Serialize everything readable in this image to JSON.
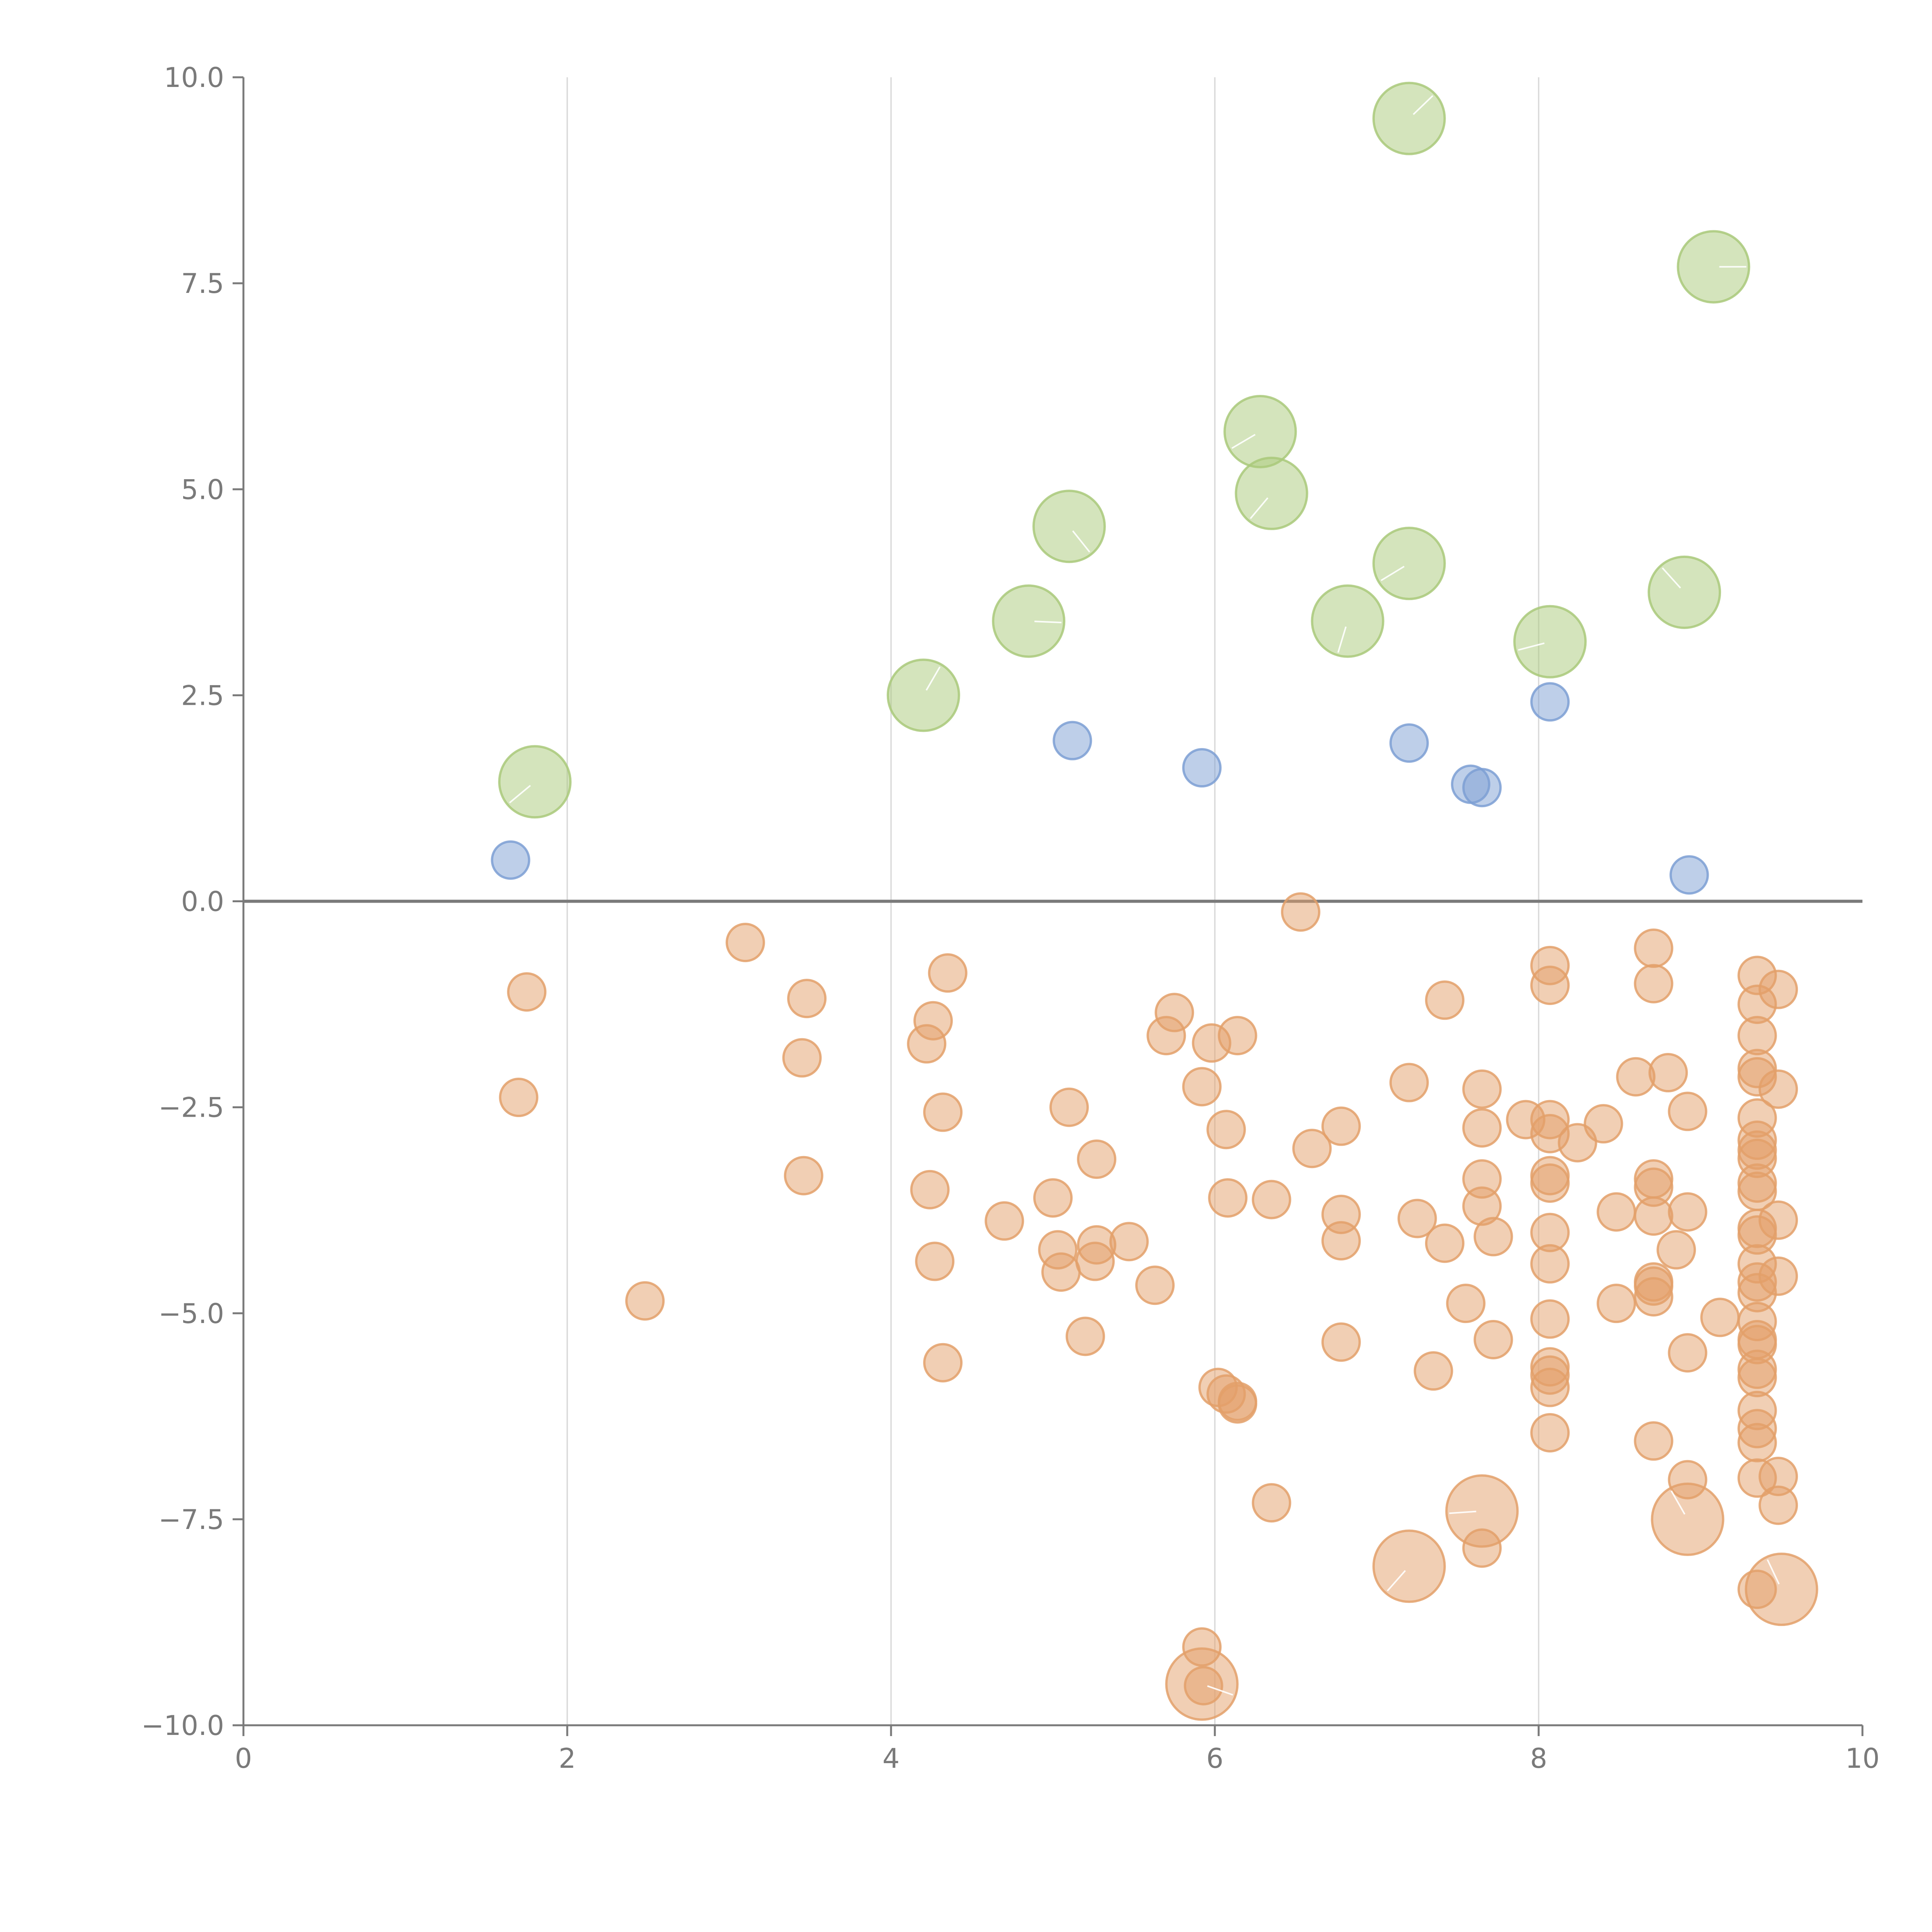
{
  "chart_data": {
    "type": "scatter",
    "title": "",
    "xlabel": "",
    "ylabel": "",
    "xlim": [
      0,
      10
    ],
    "ylim": [
      -10,
      10
    ],
    "xticks": [
      "0",
      "2",
      "4",
      "6",
      "8",
      "10"
    ],
    "yticks": [
      "10.0",
      "7.5",
      "5.0",
      "2.5",
      "0.0",
      "−2.5",
      "−5.0",
      "−7.5",
      "−10.0"
    ],
    "grid": "vertical",
    "legend": "none",
    "colors": {
      "green": "#a9c97a",
      "blue": "#7d9fd3",
      "orange": "#e3a06a",
      "axis": "#7a7a7a",
      "grid": "#d9d9d9"
    },
    "series": [
      {
        "name": "green",
        "color": "#a9c97a",
        "size": "large",
        "points": [
          {
            "x": 1.8,
            "y": 1.45
          },
          {
            "x": 4.2,
            "y": 2.5
          },
          {
            "x": 4.85,
            "y": 3.4
          },
          {
            "x": 5.1,
            "y": 4.55
          },
          {
            "x": 6.28,
            "y": 5.7
          },
          {
            "x": 6.35,
            "y": 4.95
          },
          {
            "x": 6.82,
            "y": 3.4
          },
          {
            "x": 7.2,
            "y": 4.1
          },
          {
            "x": 7.2,
            "y": 9.5
          },
          {
            "x": 8.07,
            "y": 3.15
          },
          {
            "x": 8.9,
            "y": 3.75
          },
          {
            "x": 9.08,
            "y": 7.7
          }
        ]
      },
      {
        "name": "blue",
        "color": "#7d9fd3",
        "size": "small",
        "points": [
          {
            "x": 1.65,
            "y": 0.5
          },
          {
            "x": 5.12,
            "y": 1.95
          },
          {
            "x": 5.92,
            "y": 1.62
          },
          {
            "x": 7.2,
            "y": 1.92
          },
          {
            "x": 7.58,
            "y": 1.42
          },
          {
            "x": 7.65,
            "y": 1.38
          },
          {
            "x": 8.07,
            "y": 2.42
          },
          {
            "x": 8.93,
            "y": 0.32
          }
        ]
      },
      {
        "name": "orange",
        "color": "#e3a06a",
        "size": "small",
        "points": [
          {
            "x": 1.75,
            "y": -1.1
          },
          {
            "x": 1.7,
            "y": -2.38
          },
          {
            "x": 2.48,
            "y": -4.85
          },
          {
            "x": 3.1,
            "y": -0.5
          },
          {
            "x": 3.48,
            "y": -1.18
          },
          {
            "x": 3.45,
            "y": -1.9
          },
          {
            "x": 3.46,
            "y": -3.33
          },
          {
            "x": 4.35,
            "y": -0.87
          },
          {
            "x": 4.26,
            "y": -1.45
          },
          {
            "x": 4.22,
            "y": -1.73
          },
          {
            "x": 4.32,
            "y": -2.56
          },
          {
            "x": 4.24,
            "y": -3.5
          },
          {
            "x": 4.27,
            "y": -4.37
          },
          {
            "x": 4.32,
            "y": -5.6
          },
          {
            "x": 4.7,
            "y": -3.88
          },
          {
            "x": 5.0,
            "y": -3.6
          },
          {
            "x": 5.03,
            "y": -4.23
          },
          {
            "x": 5.05,
            "y": -4.5
          },
          {
            "x": 5.1,
            "y": -2.5
          },
          {
            "x": 5.2,
            "y": -5.28
          },
          {
            "x": 5.27,
            "y": -3.13
          },
          {
            "x": 5.27,
            "y": -4.17
          },
          {
            "x": 5.26,
            "y": -4.37
          },
          {
            "x": 5.47,
            "y": -4.13
          },
          {
            "x": 5.63,
            "y": -4.66
          },
          {
            "x": 5.7,
            "y": -1.63
          },
          {
            "x": 5.75,
            "y": -1.35
          },
          {
            "x": 5.92,
            "y": -2.25
          },
          {
            "x": 5.98,
            "y": -1.72
          },
          {
            "x": 6.07,
            "y": -2.77
          },
          {
            "x": 6.08,
            "y": -3.6
          },
          {
            "x": 6.14,
            "y": -1.63
          },
          {
            "x": 6.35,
            "y": -3.62
          },
          {
            "x": 6.02,
            "y": -5.9
          },
          {
            "x": 6.07,
            "y": -5.98
          },
          {
            "x": 6.14,
            "y": -6.1
          },
          {
            "x": 6.14,
            "y": -6.07
          },
          {
            "x": 6.35,
            "y": -7.3
          },
          {
            "x": 5.92,
            "y": -9.05
          },
          {
            "x": 5.93,
            "y": -9.52
          },
          {
            "x": 6.53,
            "y": -0.13
          },
          {
            "x": 6.6,
            "y": -3.0
          },
          {
            "x": 6.78,
            "y": -2.73
          },
          {
            "x": 6.78,
            "y": -3.8
          },
          {
            "x": 6.78,
            "y": -4.12
          },
          {
            "x": 6.78,
            "y": -5.35
          },
          {
            "x": 7.2,
            "y": -2.2
          },
          {
            "x": 7.25,
            "y": -3.85
          },
          {
            "x": 7.35,
            "y": -5.7
          },
          {
            "x": 7.42,
            "y": -1.2
          },
          {
            "x": 7.42,
            "y": -4.15
          },
          {
            "x": 7.55,
            "y": -4.88
          },
          {
            "x": 7.65,
            "y": -2.28
          },
          {
            "x": 7.65,
            "y": -2.75
          },
          {
            "x": 7.65,
            "y": -3.37
          },
          {
            "x": 7.65,
            "y": -3.7
          },
          {
            "x": 7.72,
            "y": -4.07
          },
          {
            "x": 7.72,
            "y": -5.32
          },
          {
            "x": 7.65,
            "y": -7.85
          },
          {
            "x": 7.92,
            "y": -2.65
          },
          {
            "x": 8.07,
            "y": -0.78
          },
          {
            "x": 8.07,
            "y": -1.02
          },
          {
            "x": 8.07,
            "y": -2.65
          },
          {
            "x": 8.07,
            "y": -2.82
          },
          {
            "x": 8.07,
            "y": -3.33
          },
          {
            "x": 8.07,
            "y": -3.42
          },
          {
            "x": 8.07,
            "y": -4.02
          },
          {
            "x": 8.07,
            "y": -4.4
          },
          {
            "x": 8.07,
            "y": -5.07
          },
          {
            "x": 8.07,
            "y": -5.65
          },
          {
            "x": 8.07,
            "y": -5.75
          },
          {
            "x": 8.07,
            "y": -5.9
          },
          {
            "x": 8.07,
            "y": -6.45
          },
          {
            "x": 8.24,
            "y": -2.93
          },
          {
            "x": 8.4,
            "y": -2.7
          },
          {
            "x": 8.48,
            "y": -3.77
          },
          {
            "x": 8.48,
            "y": -4.88
          },
          {
            "x": 8.6,
            "y": -2.13
          },
          {
            "x": 8.71,
            "y": -0.57
          },
          {
            "x": 8.71,
            "y": -1.0
          },
          {
            "x": 8.71,
            "y": -3.37
          },
          {
            "x": 8.71,
            "y": -3.47
          },
          {
            "x": 8.71,
            "y": -3.82
          },
          {
            "x": 8.71,
            "y": -4.62
          },
          {
            "x": 8.71,
            "y": -4.67
          },
          {
            "x": 8.71,
            "y": -4.8
          },
          {
            "x": 8.71,
            "y": -6.55
          },
          {
            "x": 8.8,
            "y": -2.08
          },
          {
            "x": 8.85,
            "y": -4.23
          },
          {
            "x": 8.92,
            "y": -2.55
          },
          {
            "x": 8.92,
            "y": -3.77
          },
          {
            "x": 8.92,
            "y": -5.48
          },
          {
            "x": 8.92,
            "y": -7.02
          },
          {
            "x": 9.12,
            "y": -5.05
          },
          {
            "x": 9.35,
            "y": -0.9
          },
          {
            "x": 9.35,
            "y": -1.25
          },
          {
            "x": 9.35,
            "y": -1.63
          },
          {
            "x": 9.35,
            "y": -2.03
          },
          {
            "x": 9.35,
            "y": -2.13
          },
          {
            "x": 9.35,
            "y": -2.63
          },
          {
            "x": 9.35,
            "y": -2.9
          },
          {
            "x": 9.35,
            "y": -3.02
          },
          {
            "x": 9.35,
            "y": -3.12
          },
          {
            "x": 9.35,
            "y": -3.42
          },
          {
            "x": 9.35,
            "y": -3.52
          },
          {
            "x": 9.35,
            "y": -3.97
          },
          {
            "x": 9.35,
            "y": -4.05
          },
          {
            "x": 9.35,
            "y": -4.4
          },
          {
            "x": 9.35,
            "y": -4.62
          },
          {
            "x": 9.35,
            "y": -4.75
          },
          {
            "x": 9.35,
            "y": -5.1
          },
          {
            "x": 9.35,
            "y": -5.32
          },
          {
            "x": 9.35,
            "y": -5.38
          },
          {
            "x": 9.35,
            "y": -5.68
          },
          {
            "x": 9.35,
            "y": -5.78
          },
          {
            "x": 9.35,
            "y": -6.18
          },
          {
            "x": 9.35,
            "y": -6.4
          },
          {
            "x": 9.35,
            "y": -6.57
          },
          {
            "x": 9.35,
            "y": -7.0
          },
          {
            "x": 9.35,
            "y": -8.35
          },
          {
            "x": 9.48,
            "y": -1.07
          },
          {
            "x": 9.48,
            "y": -2.28
          },
          {
            "x": 9.48,
            "y": -3.87
          },
          {
            "x": 9.48,
            "y": -4.55
          },
          {
            "x": 9.48,
            "y": -6.98
          },
          {
            "x": 9.48,
            "y": -7.33
          }
        ]
      },
      {
        "name": "orange-large",
        "color": "#e3a06a",
        "size": "large",
        "points": [
          {
            "x": 5.92,
            "y": -9.5
          },
          {
            "x": 7.2,
            "y": -8.07
          },
          {
            "x": 7.65,
            "y": -7.4
          },
          {
            "x": 8.92,
            "y": -7.5
          },
          {
            "x": 9.5,
            "y": -8.35
          }
        ]
      }
    ]
  }
}
